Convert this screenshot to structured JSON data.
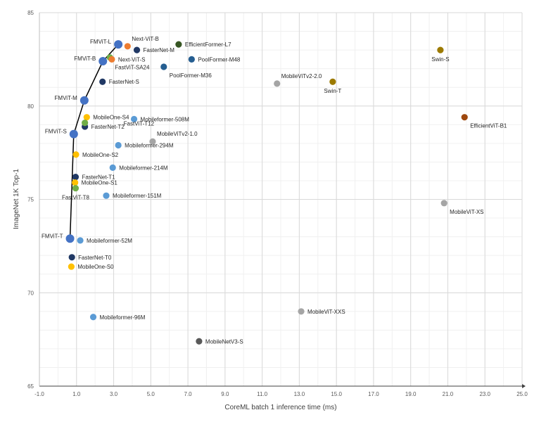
{
  "chart_data": {
    "type": "scatter",
    "title": "",
    "xlabel": "CoreML batch 1 inference time (ms)",
    "ylabel": "ImageNet 1K  Top-1",
    "xlim": [
      -1.0,
      25.0
    ],
    "ylim": [
      65,
      85
    ],
    "x_ticks": [
      "-1.0",
      "1.0",
      "3.0",
      "5.0",
      "7.0",
      "9.0",
      "11.0",
      "13.0",
      "15.0",
      "17.0",
      "19.0",
      "21.0",
      "23.0",
      "25.0"
    ],
    "y_ticks": [
      "65",
      "70",
      "75",
      "80",
      "85"
    ],
    "grid": "major and minor gridlines",
    "colors": {
      "FMViT": "#4472C4",
      "FasterNet": "#203864",
      "MobileOne": "#FFC000",
      "FastViT": "#70AD47",
      "Mobileformer": "#5B9BD5",
      "MobileViT": "#A5A5A5",
      "MobileViTv2": "#A5A5A5",
      "Swin": "#9C7A00",
      "EfficientViT": "#9E480E",
      "EfficientFormer": "#375623",
      "PoolFormer": "#255E91",
      "Next-ViT": "#ED7D31",
      "MobileNetV3": "#595959",
      "line": "#000000"
    },
    "frontier_line": {
      "name": "FMViT",
      "x": [
        0.65,
        0.85,
        1.42,
        2.42,
        3.25
      ],
      "y": [
        72.9,
        78.5,
        80.3,
        82.4,
        83.3
      ]
    },
    "points": [
      {
        "label": "FMViT-T",
        "family": "FMViT",
        "x": 0.65,
        "y": 72.9,
        "anchor": "left"
      },
      {
        "label": "FMViT-S",
        "family": "FMViT",
        "x": 0.85,
        "y": 78.5,
        "anchor": "left"
      },
      {
        "label": "FMViT-M",
        "family": "FMViT",
        "x": 1.42,
        "y": 80.3,
        "anchor": "left"
      },
      {
        "label": "FMViT-B",
        "family": "FMViT",
        "x": 2.42,
        "y": 82.4,
        "anchor": "left"
      },
      {
        "label": "FMViT-L",
        "family": "FMViT",
        "x": 3.25,
        "y": 83.3,
        "anchor": "left"
      },
      {
        "label": "FasterNet-T0",
        "family": "FasterNet",
        "x": 0.75,
        "y": 71.9,
        "anchor": "right"
      },
      {
        "label": "FasterNet-T1",
        "family": "FasterNet",
        "x": 0.95,
        "y": 76.2,
        "anchor": "right"
      },
      {
        "label": "FasterNet-T2",
        "family": "FasterNet",
        "x": 1.45,
        "y": 78.9,
        "anchor": "right"
      },
      {
        "label": "FasterNet-S",
        "family": "FasterNet",
        "x": 2.4,
        "y": 81.3,
        "anchor": "right"
      },
      {
        "label": "FasterNet-M",
        "family": "FasterNet",
        "x": 4.25,
        "y": 83.0,
        "anchor": "right"
      },
      {
        "label": "MobileOne-S0",
        "family": "MobileOne",
        "x": 0.72,
        "y": 71.4,
        "anchor": "right"
      },
      {
        "label": "MobileOne-S1",
        "family": "MobileOne",
        "x": 0.92,
        "y": 75.9,
        "anchor": "right"
      },
      {
        "label": "MobileOne-S2",
        "family": "MobileOne",
        "x": 0.97,
        "y": 77.4,
        "anchor": "right"
      },
      {
        "label": "MobileOne-S4",
        "family": "MobileOne",
        "x": 1.55,
        "y": 79.4,
        "anchor": "right"
      },
      {
        "label": "FastViT-T8",
        "family": "FastViT",
        "x": 0.95,
        "y": 75.6,
        "anchor": "below"
      },
      {
        "label": "FastViT-T12",
        "family": "FastViT",
        "x": 1.45,
        "y": 79.1,
        "anchor": "custom-t12"
      },
      {
        "label": "FastViT-SA24",
        "family": "FastViT",
        "x": 2.8,
        "y": 82.6,
        "anchor": "custom-sa24"
      },
      {
        "label": "Next-ViT-S",
        "family": "Next-ViT",
        "x": 2.9,
        "y": 82.5,
        "anchor": "right"
      },
      {
        "label": "Next-ViT-B",
        "family": "Next-ViT",
        "x": 3.75,
        "y": 83.2,
        "anchor": "above-right"
      },
      {
        "label": "Mobileformer-52M",
        "family": "Mobileformer",
        "x": 1.2,
        "y": 72.8,
        "anchor": "right"
      },
      {
        "label": "Mobileformer-96M",
        "family": "Mobileformer",
        "x": 1.9,
        "y": 68.7,
        "anchor": "right"
      },
      {
        "label": "Mobileformer-151M",
        "family": "Mobileformer",
        "x": 2.6,
        "y": 75.2,
        "anchor": "right"
      },
      {
        "label": "Mobileformer-214M",
        "family": "Mobileformer",
        "x": 2.95,
        "y": 76.7,
        "anchor": "right"
      },
      {
        "label": "Mobileformer-294M",
        "family": "Mobileformer",
        "x": 3.25,
        "y": 77.9,
        "anchor": "right"
      },
      {
        "label": "Mobileformer-508M",
        "family": "Mobileformer",
        "x": 4.1,
        "y": 79.3,
        "anchor": "right"
      },
      {
        "label": "EfficientFormer-L7",
        "family": "EfficientFormer",
        "x": 6.5,
        "y": 83.3,
        "anchor": "right"
      },
      {
        "label": "PoolFormer-M48",
        "family": "PoolFormer",
        "x": 7.2,
        "y": 82.5,
        "anchor": "right"
      },
      {
        "label": "PoolFormer-M36",
        "family": "PoolFormer",
        "x": 5.7,
        "y": 82.1,
        "anchor": "below-right"
      },
      {
        "label": "MobileViTv2-1.0",
        "family": "MobileViTv2",
        "x": 5.1,
        "y": 78.1,
        "anchor": "above-right"
      },
      {
        "label": "MobileViTv2-2.0",
        "family": "MobileViTv2",
        "x": 11.8,
        "y": 81.2,
        "anchor": "above-right"
      },
      {
        "label": "MobileViT-XXS",
        "family": "MobileViT",
        "x": 13.1,
        "y": 69.0,
        "anchor": "right"
      },
      {
        "label": "MobileViT-XS",
        "family": "MobileViT",
        "x": 20.8,
        "y": 74.8,
        "anchor": "below-right"
      },
      {
        "label": "MobileNetV3-S",
        "family": "MobileNetV3",
        "x": 7.6,
        "y": 67.4,
        "anchor": "right"
      },
      {
        "label": "Swin-T",
        "family": "Swin",
        "x": 14.8,
        "y": 81.3,
        "anchor": "below"
      },
      {
        "label": "Swin-S",
        "family": "Swin",
        "x": 20.6,
        "y": 83.0,
        "anchor": "below"
      },
      {
        "label": "EfficientViT-B1",
        "family": "EfficientViT",
        "x": 21.9,
        "y": 79.4,
        "anchor": "below-right"
      }
    ]
  }
}
